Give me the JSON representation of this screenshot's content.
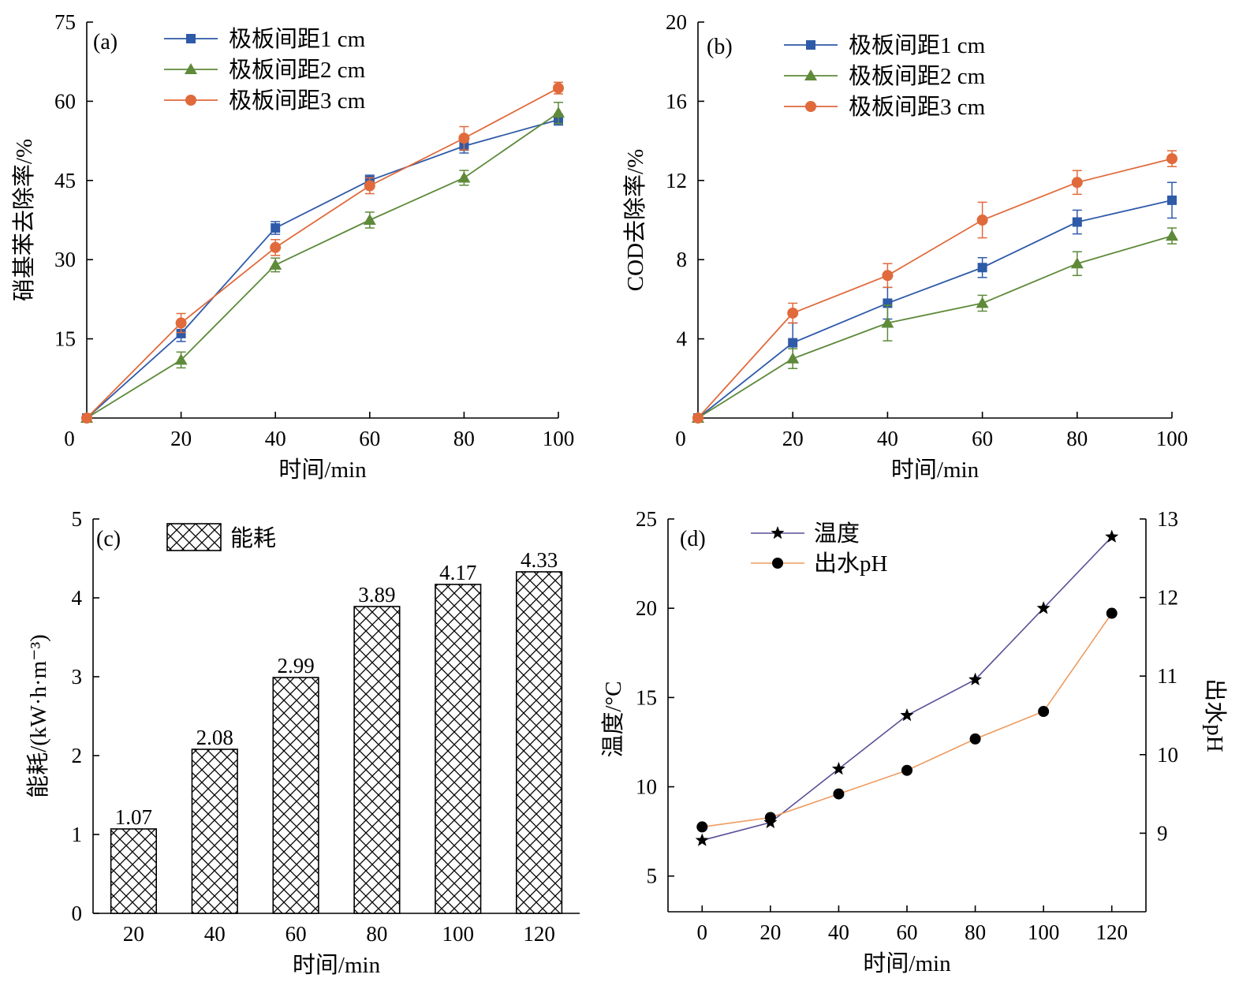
{
  "colors": {
    "blue": "#2E5AA8",
    "green": "#5E8A3A",
    "orange": "#E06A3B",
    "purple": "#5A4E96",
    "light_orange": "#ED9B5F",
    "black": "#000000"
  },
  "chart_data": [
    {
      "panel": "(a)",
      "type": "line",
      "xlabel": "时间/min",
      "ylabel": "硝基苯去除率/%",
      "xlim": [
        0,
        100
      ],
      "ylim": [
        0,
        75
      ],
      "x_ticks": [
        0,
        20,
        40,
        60,
        80,
        100
      ],
      "y_ticks": [
        15,
        30,
        45,
        60,
        75
      ],
      "x": [
        0,
        20,
        40,
        60,
        80,
        100
      ],
      "grid": false,
      "legend": "top-left",
      "series": [
        {
          "name": "极板间距1 cm",
          "marker": "square",
          "color": "#2E5AA8",
          "values": [
            0,
            16.0,
            36.0,
            45.0,
            51.5,
            56.5
          ],
          "errors": [
            0,
            1.5,
            1.2,
            1.0,
            1.3,
            1.0
          ]
        },
        {
          "name": "极板间距2 cm",
          "marker": "triangle",
          "color": "#5E8A3A",
          "values": [
            0,
            11.0,
            29.0,
            37.5,
            45.5,
            57.8
          ],
          "errors": [
            0,
            1.5,
            1.3,
            1.5,
            1.4,
            2.0
          ]
        },
        {
          "name": "极板间距3 cm",
          "marker": "circle",
          "color": "#E06A3B",
          "values": [
            0,
            18.0,
            32.3,
            44.0,
            53.0,
            62.5
          ],
          "errors": [
            0,
            1.8,
            1.5,
            1.5,
            2.2,
            1.1
          ]
        }
      ]
    },
    {
      "panel": "(b)",
      "type": "line",
      "xlabel": "时间/min",
      "ylabel": "COD去除率/%",
      "xlim": [
        0,
        100
      ],
      "ylim": [
        0,
        20
      ],
      "x_ticks": [
        0,
        20,
        40,
        60,
        80,
        100
      ],
      "y_ticks": [
        4,
        8,
        12,
        16,
        20
      ],
      "x": [
        0,
        20,
        40,
        60,
        80,
        100
      ],
      "grid": false,
      "legend": "top-left",
      "series": [
        {
          "name": "极板间距1 cm",
          "marker": "square",
          "color": "#2E5AA8",
          "values": [
            0,
            3.8,
            5.8,
            7.6,
            9.9,
            11.0
          ],
          "errors": [
            0,
            1.0,
            0.8,
            0.5,
            0.6,
            0.9
          ]
        },
        {
          "name": "极板间距2 cm",
          "marker": "triangle",
          "color": "#5E8A3A",
          "values": [
            0,
            3.0,
            4.8,
            5.8,
            7.8,
            9.2
          ],
          "errors": [
            0,
            0.5,
            0.9,
            0.4,
            0.6,
            0.4
          ]
        },
        {
          "name": "极板间距3 cm",
          "marker": "circle",
          "color": "#E06A3B",
          "values": [
            0,
            5.3,
            7.2,
            10.0,
            11.9,
            13.1
          ],
          "errors": [
            0,
            0.5,
            0.6,
            0.9,
            0.6,
            0.4
          ]
        }
      ]
    },
    {
      "panel": "(c)",
      "type": "bar",
      "xlabel": "时间/min",
      "ylabel": "能耗/(kW·h·m⁻³)",
      "ylim": [
        0,
        5
      ],
      "y_ticks": [
        0,
        1,
        2,
        3,
        4,
        5
      ],
      "categories": [
        "20",
        "40",
        "60",
        "80",
        "100",
        "120"
      ],
      "grid": false,
      "legend": "top-left",
      "series": [
        {
          "name": "能耗",
          "pattern": "crosshatch",
          "values": [
            1.07,
            2.08,
            2.99,
            3.89,
            4.17,
            4.33
          ],
          "value_labels": [
            "1.07",
            "2.08",
            "2.99",
            "3.89",
            "4.17",
            "4.33"
          ]
        }
      ]
    },
    {
      "panel": "(d)",
      "type": "line",
      "xlabel": "时间/min",
      "ylabel": "温度/°C",
      "y2label": "出水pH",
      "xlim": [
        -10,
        130
      ],
      "ylim": [
        3,
        25
      ],
      "y2lim": [
        8,
        13
      ],
      "x_ticks": [
        0,
        20,
        40,
        60,
        80,
        100,
        120
      ],
      "y_ticks": [
        5,
        10,
        15,
        20,
        25
      ],
      "y2_ticks": [
        9,
        10,
        11,
        12,
        13
      ],
      "x": [
        0,
        20,
        40,
        60,
        80,
        100,
        120
      ],
      "grid": false,
      "legend": "top-left",
      "series": [
        {
          "name": "温度",
          "axis": "left",
          "marker": "star",
          "color": "#5A4E96",
          "values": [
            7,
            8,
            11,
            14,
            16,
            20,
            24
          ]
        },
        {
          "name": "出水pH",
          "axis": "right",
          "marker": "circle",
          "color": "#ED9B5F",
          "values": [
            9.08,
            9.2,
            9.5,
            9.8,
            10.2,
            10.55,
            11.8
          ]
        }
      ]
    }
  ]
}
